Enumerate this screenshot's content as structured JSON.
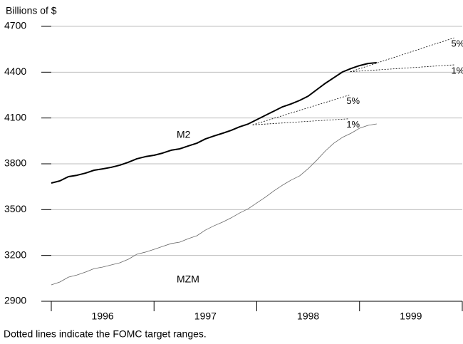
{
  "chart_data": {
    "type": "line",
    "y_label": "Billions of $",
    "note": "Dotted lines indicate the FOMC target ranges.",
    "xlim": [
      1996,
      2000
    ],
    "xticks": [
      1996,
      1997,
      1998,
      1999,
      2000
    ],
    "year_labels": [
      {
        "value": 1996.5,
        "label": "1996"
      },
      {
        "value": 1997.5,
        "label": "1997"
      },
      {
        "value": 1998.5,
        "label": "1998"
      },
      {
        "value": 1999.5,
        "label": "1999"
      }
    ],
    "ylim": [
      2900,
      4700
    ],
    "yticks": [
      2900,
      3200,
      3500,
      3800,
      4100,
      4400,
      4700
    ],
    "grid": true,
    "x": [
      1996.0,
      1996.083,
      1996.167,
      1996.25,
      1996.333,
      1996.417,
      1996.5,
      1996.583,
      1996.667,
      1996.75,
      1996.833,
      1996.917,
      1997.0,
      1997.083,
      1997.167,
      1997.25,
      1997.333,
      1997.417,
      1997.5,
      1997.583,
      1997.667,
      1997.75,
      1997.833,
      1997.917,
      1998.0,
      1998.083,
      1998.167,
      1998.25,
      1998.333,
      1998.417,
      1998.5,
      1998.583,
      1998.667,
      1998.75,
      1998.833,
      1998.917,
      1999.0,
      1999.083,
      1999.167
    ],
    "series": [
      {
        "name": "M2",
        "color": "#000000",
        "width": 2,
        "values": [
          3674,
          3688,
          3716,
          3725,
          3739,
          3758,
          3767,
          3777,
          3791,
          3810,
          3833,
          3847,
          3856,
          3870,
          3889,
          3898,
          3917,
          3935,
          3963,
          3982,
          4000,
          4019,
          4042,
          4061,
          4089,
          4117,
          4145,
          4173,
          4192,
          4215,
          4243,
          4285,
          4327,
          4364,
          4401,
          4424,
          4443,
          4457,
          4462
        ]
      },
      {
        "name": "MZM",
        "color": "#666666",
        "width": 0.8,
        "values": [
          3007,
          3026,
          3058,
          3072,
          3091,
          3114,
          3124,
          3138,
          3152,
          3175,
          3208,
          3222,
          3240,
          3259,
          3278,
          3287,
          3310,
          3329,
          3366,
          3394,
          3418,
          3446,
          3478,
          3506,
          3544,
          3581,
          3623,
          3660,
          3693,
          3721,
          3768,
          3823,
          3884,
          3935,
          3973,
          4000,
          4033,
          4052,
          4061
        ]
      }
    ],
    "target_ranges": [
      {
        "start_x": 1997.96,
        "start": 4055,
        "end_x": 1998.9,
        "upper": 4250,
        "lower": 4095,
        "upper_label": "5%",
        "lower_label": "1%"
      },
      {
        "start_x": 1998.91,
        "start": 4403,
        "end_x": 1999.92,
        "upper": 4625,
        "lower": 4448,
        "upper_label": "5%",
        "lower_label": "1%"
      }
    ]
  }
}
